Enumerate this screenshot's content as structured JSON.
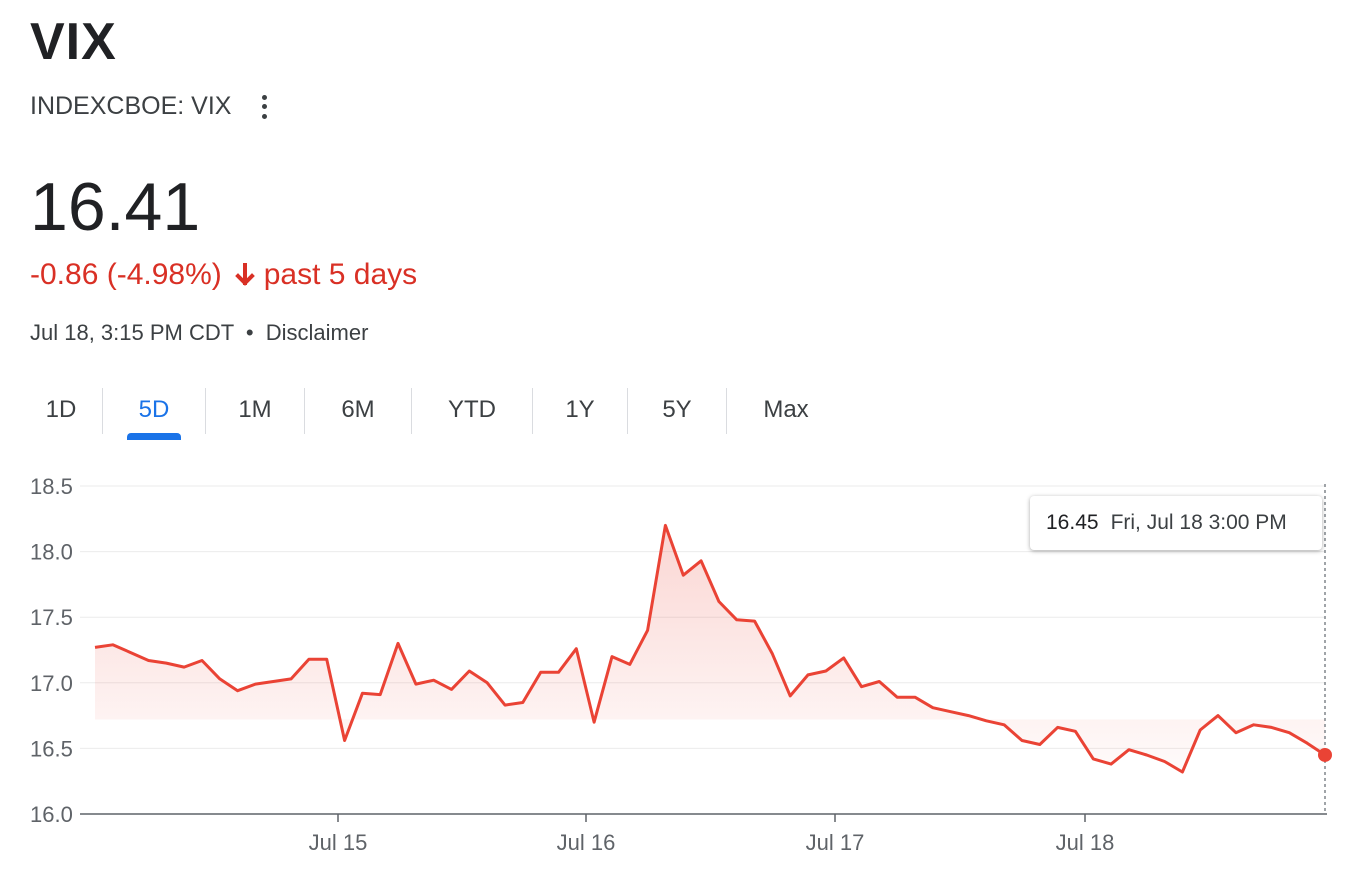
{
  "header": {
    "title": "VIX",
    "ticker": "INDEXCBOE: VIX",
    "more_icon": "more-vert-icon"
  },
  "quote": {
    "price": "16.41",
    "change": "-0.86 (-4.98%)",
    "change_icon": "arrow-down-icon",
    "period": "past 5 days",
    "timestamp": "Jul 18, 3:15 PM CDT",
    "separator": "•",
    "disclaimer": "Disclaimer",
    "change_color": "#d93025"
  },
  "tabs": [
    {
      "label": "1D",
      "active": false
    },
    {
      "label": "5D",
      "active": true
    },
    {
      "label": "1M",
      "active": false
    },
    {
      "label": "6M",
      "active": false
    },
    {
      "label": "YTD",
      "active": false
    },
    {
      "label": "1Y",
      "active": false
    },
    {
      "label": "5Y",
      "active": false
    },
    {
      "label": "Max",
      "active": false
    }
  ],
  "tooltip": {
    "value": "16.45",
    "date": "Fri, Jul 18 3:00 PM"
  },
  "chart_data": {
    "type": "area",
    "title": "",
    "xlabel": "",
    "ylabel": "",
    "ylim": [
      16.0,
      18.5
    ],
    "yticks": [
      "18.5",
      "18.0",
      "17.5",
      "17.0",
      "16.5",
      "16.0"
    ],
    "xticks": [
      "Jul 15",
      "Jul 16",
      "Jul 17",
      "Jul 18"
    ],
    "grid": true,
    "line_color": "#ea4335",
    "series": [
      {
        "values": [
          17.27,
          17.29,
          17.23,
          17.17,
          17.15,
          17.12,
          17.17,
          17.03,
          16.94,
          16.99,
          17.01,
          17.03,
          17.18,
          17.18,
          16.56,
          16.92,
          16.91,
          17.3,
          16.99,
          17.02,
          16.95,
          17.09,
          17.0,
          16.83,
          16.85,
          17.08,
          17.08,
          17.26,
          16.7,
          17.2,
          17.14,
          17.4,
          18.2,
          17.82,
          17.93,
          17.62,
          17.48,
          17.47,
          17.22,
          16.9,
          17.06,
          17.09,
          17.19,
          16.97,
          17.01,
          16.89,
          16.89,
          16.81,
          16.78,
          16.75,
          16.71,
          16.68,
          16.56,
          16.53,
          16.66,
          16.63,
          16.42,
          16.38,
          16.49,
          16.45,
          16.4,
          16.32,
          16.64,
          16.75,
          16.62,
          16.68,
          16.66,
          16.62,
          16.54,
          16.45
        ]
      }
    ]
  }
}
